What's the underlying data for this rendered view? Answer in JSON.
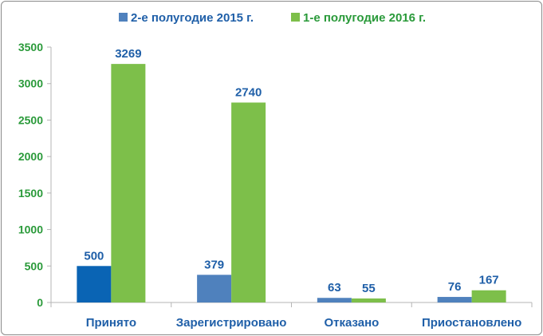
{
  "chart_data": {
    "type": "bar",
    "categories": [
      "Принято",
      "Зарегистрировано",
      "Отказано",
      "Приостановлено"
    ],
    "series": [
      {
        "name": "2-е полугодие 2015 г.",
        "values": [
          500,
          379,
          63,
          76
        ],
        "color": "#4f81bd",
        "highlight_color": "#0a64b4"
      },
      {
        "name": "1-е полугодие 2016 г.",
        "values": [
          3269,
          2740,
          55,
          167
        ],
        "color": "#7dbf4a"
      }
    ],
    "title": "",
    "xlabel": "",
    "ylabel": "",
    "ylim": [
      0,
      3500
    ],
    "yticks": [
      0,
      500,
      1000,
      1500,
      2000,
      2500,
      3000,
      3500
    ],
    "grid": false,
    "legend_position": "top",
    "colors": {
      "tick_labels": "#2a9a3a",
      "category_labels": "#1f5fa8",
      "data_labels": "#1f5fa8",
      "legend_series1_text": "#1f5fa8",
      "legend_series2_text": "#2a9a3a",
      "axis": "#b5b5b5"
    }
  }
}
